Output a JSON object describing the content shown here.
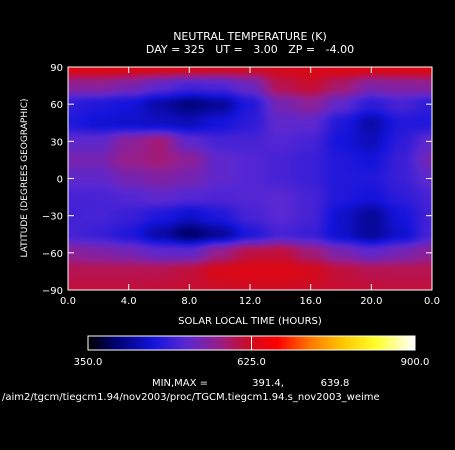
{
  "chart_data": {
    "type": "heatmap",
    "title": "NEUTRAL TEMPERATURE (K)",
    "subtitle": "DAY = 325   UT =   3.00   ZP =   -4.00",
    "xlabel": "SOLAR LOCAL TIME (HOURS)",
    "ylabel": "LATITUDE (DEGREES GEOGRAPHIC)",
    "xlim": [
      0,
      24
    ],
    "ylim": [
      -90,
      90
    ],
    "x_ticks": [
      "0.0",
      "4.0",
      "8.0",
      "12.0",
      "16.0",
      "20.0",
      "0.0"
    ],
    "y_ticks": [
      "-90",
      "-60",
      "-30",
      "0",
      "30",
      "60",
      "90"
    ],
    "x": [
      0,
      2,
      4,
      6,
      8,
      10,
      12,
      14,
      16,
      18,
      20,
      22,
      24
    ],
    "y": [
      90,
      75,
      60,
      45,
      30,
      15,
      0,
      -15,
      -30,
      -45,
      -60,
      -75,
      -90
    ],
    "z": [
      [
        639,
        639,
        639,
        636,
        632,
        628,
        625,
        628,
        634,
        637,
        638,
        639,
        639
      ],
      [
        560,
        560,
        545,
        520,
        500,
        505,
        530,
        600,
        615,
        585,
        550,
        555,
        560
      ],
      [
        480,
        470,
        460,
        430,
        405,
        420,
        470,
        540,
        560,
        520,
        480,
        500,
        480
      ],
      [
        470,
        455,
        450,
        445,
        440,
        460,
        480,
        520,
        520,
        470,
        430,
        470,
        470
      ],
      [
        520,
        520,
        560,
        580,
        520,
        500,
        500,
        510,
        500,
        460,
        440,
        480,
        520
      ],
      [
        540,
        540,
        570,
        580,
        560,
        520,
        510,
        500,
        490,
        470,
        460,
        490,
        540
      ],
      [
        520,
        520,
        540,
        550,
        540,
        520,
        510,
        500,
        490,
        470,
        470,
        490,
        520
      ],
      [
        500,
        500,
        510,
        520,
        510,
        505,
        510,
        515,
        500,
        470,
        460,
        480,
        500
      ],
      [
        495,
        500,
        490,
        470,
        450,
        470,
        500,
        515,
        500,
        450,
        420,
        460,
        495
      ],
      [
        500,
        490,
        470,
        430,
        395,
        420,
        470,
        500,
        490,
        450,
        420,
        450,
        500
      ],
      [
        560,
        550,
        540,
        520,
        520,
        570,
        605,
        610,
        580,
        545,
        520,
        540,
        560
      ],
      [
        600,
        600,
        600,
        600,
        610,
        630,
        636,
        636,
        628,
        610,
        600,
        600,
        600
      ],
      [
        610,
        610,
        610,
        612,
        615,
        620,
        622,
        622,
        620,
        615,
        612,
        610,
        610
      ]
    ],
    "colorbar": {
      "ticks": [
        "350.0",
        "625.0",
        "900.0"
      ],
      "range": [
        350,
        900
      ]
    },
    "minmax_label": "MIN,MAX =",
    "min_value": "391.4,",
    "max_value": "639.8",
    "footer_path": "/aim2/tgcm/tiegcm1.94/nov2003/proc/TGCM.tiegcm1.94.s_nov2003_weime"
  }
}
